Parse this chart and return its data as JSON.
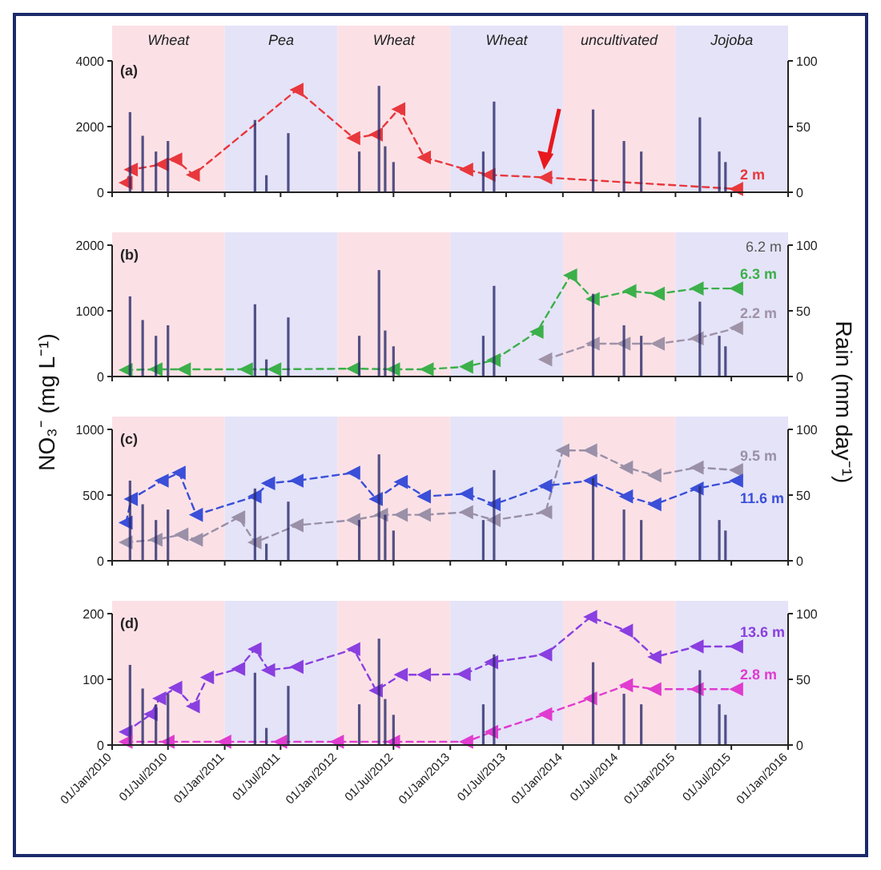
{
  "chart_data": [
    {
      "type": "line",
      "title": "(a)",
      "xlim": [
        "2010-01-01",
        "2016-01-01"
      ],
      "xticks": [
        {
          "value": "2010-01-01",
          "label": null
        },
        {
          "value": "2010-07-01",
          "label": null
        },
        {
          "value": "2011-01-01",
          "label": null
        },
        {
          "value": "2011-07-01",
          "label": null
        },
        {
          "value": "2012-01-01",
          "label": null
        },
        {
          "value": "2012-07-01",
          "label": null
        },
        {
          "value": "2013-01-01",
          "label": null
        },
        {
          "value": "2013-07-01",
          "label": null
        },
        {
          "value": "2014-01-01",
          "label": null
        },
        {
          "value": "2014-07-01",
          "label": null
        },
        {
          "value": "2015-01-01",
          "label": null
        },
        {
          "value": "2015-07-01",
          "label": null
        },
        {
          "value": "2016-01-01",
          "label": null
        }
      ],
      "ylim": [
        0,
        4000
      ],
      "yticks": [
        0,
        2000,
        4000
      ],
      "y2lim": [
        0,
        100
      ],
      "y2ticks": [
        0,
        50,
        100
      ],
      "tick_labels": "y",
      "marker": "triangle",
      "line_style": "dashed",
      "bands": [
        {
          "axis": "x",
          "from": "2010-01-01",
          "to": "2011-01-01",
          "label": "Wheat",
          "color": "#fbe1e6"
        },
        {
          "axis": "x",
          "from": "2011-01-01",
          "to": "2012-01-01",
          "label": "Pea",
          "color": "#e4e3f8"
        },
        {
          "axis": "x",
          "from": "2012-01-01",
          "to": "2013-01-01",
          "label": "Wheat",
          "color": "#fbe1e6"
        },
        {
          "axis": "x",
          "from": "2013-01-01",
          "to": "2014-01-01",
          "label": "Wheat",
          "color": "#e4e3f8"
        },
        {
          "axis": "x",
          "from": "2014-01-01",
          "to": "2015-01-01",
          "label": "uncultivated",
          "color": "#fbe1e6"
        },
        {
          "axis": "x",
          "from": "2015-01-01",
          "to": "2016-01-01",
          "label": "Jojoba",
          "color": "#e4e3f8"
        }
      ],
      "series": [
        {
          "type": "bar",
          "axis": "y2",
          "color": "#2a2a6a",
          "x": [
            "2010-02-28",
            "2010-04-10",
            "2010-05-23",
            "2010-07-01",
            "2011-04-09",
            "2011-05-16",
            "2011-07-26",
            "2012-03-12",
            "2012-05-15",
            "2012-06-04",
            "2012-07-01",
            "2013-04-18",
            "2013-05-23",
            "2014-04-09",
            "2014-07-18",
            "2014-09-12",
            "2015-03-21",
            "2015-05-23",
            "2015-06-12"
          ],
          "values": [
            61,
            43,
            31,
            39,
            55,
            13,
            45,
            31,
            81,
            35,
            23,
            31,
            69,
            63,
            39,
            31,
            57,
            31,
            23
          ]
        },
        {
          "name": "2 m",
          "color": "#e8383d",
          "x": [
            "2010-02-15",
            "2010-03-04",
            "2010-06-12",
            "2010-07-26",
            "2010-09-21",
            "2011-08-23",
            "2012-02-23",
            "2012-05-06",
            "2012-07-18",
            "2012-10-09",
            "2013-02-23",
            "2013-05-06",
            "2013-11-06",
            "2015-07-18"
          ],
          "values": [
            290,
            690,
            850,
            1000,
            530,
            3120,
            1650,
            1760,
            2530,
            1060,
            690,
            530,
            450,
            100
          ]
        }
      ]
    },
    {
      "type": "line",
      "title": "(b)",
      "ylabel": "NO₃⁻ (mg L⁻¹)",
      "y2label": "Rain (mm day⁻¹)",
      "annotations": [
        "6.2 m"
      ],
      "xlim": [
        "2010-01-01",
        "2016-01-01"
      ],
      "xticks": [
        {
          "value": "2010-01-01",
          "label": null
        },
        {
          "value": "2010-07-01",
          "label": null
        },
        {
          "value": "2011-01-01",
          "label": null
        },
        {
          "value": "2011-07-01",
          "label": null
        },
        {
          "value": "2012-01-01",
          "label": null
        },
        {
          "value": "2012-07-01",
          "label": null
        },
        {
          "value": "2013-01-01",
          "label": null
        },
        {
          "value": "2013-07-01",
          "label": null
        },
        {
          "value": "2014-01-01",
          "label": null
        },
        {
          "value": "2014-07-01",
          "label": null
        },
        {
          "value": "2015-01-01",
          "label": null
        },
        {
          "value": "2015-07-01",
          "label": null
        },
        {
          "value": "2016-01-01",
          "label": null
        }
      ],
      "ylim": [
        0,
        2000
      ],
      "yticks": [
        0,
        1000,
        2000
      ],
      "y2lim": [
        0,
        100
      ],
      "y2ticks": [
        0,
        50,
        100
      ],
      "tick_labels": "y",
      "marker": "triangle",
      "line_style": "dashed",
      "bands": [
        {
          "axis": "x",
          "from": "2010-01-01",
          "to": "2011-01-01",
          "color": "#fbe1e6"
        },
        {
          "axis": "x",
          "from": "2011-01-01",
          "to": "2012-01-01",
          "color": "#e4e3f8"
        },
        {
          "axis": "x",
          "from": "2012-01-01",
          "to": "2013-01-01",
          "color": "#fbe1e6"
        },
        {
          "axis": "x",
          "from": "2013-01-01",
          "to": "2014-01-01",
          "color": "#e4e3f8"
        },
        {
          "axis": "x",
          "from": "2014-01-01",
          "to": "2015-01-01",
          "color": "#fbe1e6"
        },
        {
          "axis": "x",
          "from": "2015-01-01",
          "to": "2016-01-01",
          "color": "#e4e3f8"
        }
      ],
      "series": [
        {
          "type": "bar",
          "axis": "y2",
          "color": "#2a2a6a",
          "x": [
            "2010-02-28",
            "2010-04-10",
            "2010-05-23",
            "2010-07-01",
            "2011-04-09",
            "2011-05-16",
            "2011-07-26",
            "2012-03-12",
            "2012-05-15",
            "2012-06-04",
            "2012-07-01",
            "2013-04-18",
            "2013-05-23",
            "2014-04-09",
            "2014-07-18",
            "2014-09-12",
            "2015-03-21",
            "2015-05-23",
            "2015-06-12"
          ],
          "values": [
            61,
            43,
            31,
            39,
            55,
            13,
            45,
            31,
            81,
            35,
            23,
            31,
            69,
            63,
            39,
            31,
            57,
            31,
            23
          ]
        },
        {
          "name": "6.3 m",
          "color": "#3cb04a",
          "x": [
            "2010-02-15",
            "2010-05-23",
            "2010-08-23",
            "2011-03-12",
            "2011-06-12",
            "2012-02-23",
            "2012-07-01",
            "2012-10-18",
            "2013-02-23",
            "2013-05-23",
            "2013-10-09",
            "2014-01-26",
            "2014-04-09",
            "2014-08-06",
            "2014-11-06",
            "2015-03-12",
            "2015-07-18"
          ],
          "values": [
            100,
            110,
            110,
            110,
            110,
            120,
            110,
            110,
            150,
            250,
            680,
            1540,
            1180,
            1300,
            1260,
            1340,
            1340
          ]
        },
        {
          "name": "2.2 m",
          "color": "#a093a8",
          "x": [
            "2013-11-06",
            "2014-04-09",
            "2014-07-18",
            "2014-11-06",
            "2015-03-12",
            "2015-07-18"
          ],
          "values": [
            260,
            500,
            500,
            500,
            580,
            740
          ]
        }
      ]
    },
    {
      "type": "line",
      "title": "(c)",
      "xlim": [
        "2010-01-01",
        "2016-01-01"
      ],
      "xticks": [
        {
          "value": "2010-01-01",
          "label": null
        },
        {
          "value": "2010-07-01",
          "label": null
        },
        {
          "value": "2011-01-01",
          "label": null
        },
        {
          "value": "2011-07-01",
          "label": null
        },
        {
          "value": "2012-01-01",
          "label": null
        },
        {
          "value": "2012-07-01",
          "label": null
        },
        {
          "value": "2013-01-01",
          "label": null
        },
        {
          "value": "2013-07-01",
          "label": null
        },
        {
          "value": "2014-01-01",
          "label": null
        },
        {
          "value": "2014-07-01",
          "label": null
        },
        {
          "value": "2015-01-01",
          "label": null
        },
        {
          "value": "2015-07-01",
          "label": null
        },
        {
          "value": "2016-01-01",
          "label": null
        }
      ],
      "ylim": [
        0,
        1000
      ],
      "yticks": [
        0,
        500,
        1000
      ],
      "y2lim": [
        0,
        100
      ],
      "y2ticks": [
        0,
        50,
        100
      ],
      "tick_labels": "y",
      "marker": "triangle",
      "line_style": "dashed",
      "bands": [
        {
          "axis": "x",
          "from": "2010-01-01",
          "to": "2011-01-01",
          "color": "#fbe1e6"
        },
        {
          "axis": "x",
          "from": "2011-01-01",
          "to": "2012-01-01",
          "color": "#e4e3f8"
        },
        {
          "axis": "x",
          "from": "2012-01-01",
          "to": "2013-01-01",
          "color": "#fbe1e6"
        },
        {
          "axis": "x",
          "from": "2013-01-01",
          "to": "2014-01-01",
          "color": "#e4e3f8"
        },
        {
          "axis": "x",
          "from": "2014-01-01",
          "to": "2015-01-01",
          "color": "#fbe1e6"
        },
        {
          "axis": "x",
          "from": "2015-01-01",
          "to": "2016-01-01",
          "color": "#e4e3f8"
        }
      ],
      "series": [
        {
          "type": "bar",
          "axis": "y2",
          "color": "#2a2a6a",
          "x": [
            "2010-02-28",
            "2010-04-10",
            "2010-05-23",
            "2010-07-01",
            "2011-04-09",
            "2011-05-16",
            "2011-07-26",
            "2012-03-12",
            "2012-05-15",
            "2012-06-04",
            "2012-07-01",
            "2013-04-18",
            "2013-05-23",
            "2014-04-09",
            "2014-07-18",
            "2014-09-12",
            "2015-03-21",
            "2015-05-23",
            "2015-06-12"
          ],
          "values": [
            61,
            43,
            31,
            39,
            55,
            13,
            45,
            31,
            81,
            35,
            23,
            31,
            69,
            63,
            39,
            31,
            57,
            31,
            23
          ]
        },
        {
          "name": "9.5 m",
          "color": "#9a90a8",
          "x": [
            "2010-02-15",
            "2010-05-23",
            "2010-08-15",
            "2010-10-01",
            "2011-02-15",
            "2011-04-09",
            "2011-08-23",
            "2012-02-23",
            "2012-05-23",
            "2012-07-26",
            "2012-10-09",
            "2013-02-23",
            "2013-05-23",
            "2013-11-06",
            "2014-01-01",
            "2014-04-01",
            "2014-07-26",
            "2014-10-26",
            "2015-03-12",
            "2015-07-18"
          ],
          "values": [
            140,
            160,
            200,
            160,
            330,
            140,
            270,
            310,
            350,
            350,
            350,
            370,
            310,
            370,
            840,
            840,
            710,
            650,
            710,
            690
          ]
        },
        {
          "name": "11.6 m",
          "color": "#3b4fd8",
          "x": [
            "2010-02-15",
            "2010-03-04",
            "2010-06-12",
            "2010-08-06",
            "2010-10-01",
            "2011-04-09",
            "2011-05-23",
            "2011-08-23",
            "2012-02-23",
            "2012-05-06",
            "2012-07-26",
            "2012-10-09",
            "2013-02-23",
            "2013-05-23",
            "2013-11-06",
            "2014-04-01",
            "2014-07-26",
            "2014-10-26",
            "2015-03-12",
            "2015-07-18"
          ],
          "values": [
            290,
            470,
            610,
            670,
            350,
            490,
            590,
            610,
            670,
            470,
            600,
            490,
            510,
            430,
            570,
            610,
            490,
            430,
            550,
            610
          ]
        }
      ]
    },
    {
      "type": "line",
      "title": "(d)",
      "xlim": [
        "2010-01-01",
        "2016-01-01"
      ],
      "xticks": [
        {
          "value": "2010-01-01",
          "label": "01/Jan/2010"
        },
        {
          "value": "2010-07-01",
          "label": "01/Jul/2010"
        },
        {
          "value": "2011-01-01",
          "label": "01/Jan/2011"
        },
        {
          "value": "2011-07-01",
          "label": "01/Jul/2011"
        },
        {
          "value": "2012-01-01",
          "label": "01/Jan/2012"
        },
        {
          "value": "2012-07-01",
          "label": "01/Jul/2012"
        },
        {
          "value": "2013-01-01",
          "label": "01/Jan/2013"
        },
        {
          "value": "2013-07-01",
          "label": "01/Jul/2013"
        },
        {
          "value": "2014-01-01",
          "label": "01/Jan/2014"
        },
        {
          "value": "2014-07-01",
          "label": "01/Jul/2014"
        },
        {
          "value": "2015-01-01",
          "label": "01/Jan/2015"
        },
        {
          "value": "2015-07-01",
          "label": "01/Jul/2015"
        },
        {
          "value": "2016-01-01",
          "label": "01/Jan/2016"
        }
      ],
      "ylim": [
        0,
        200
      ],
      "yticks": [
        0,
        100,
        200
      ],
      "y2lim": [
        0,
        100
      ],
      "y2ticks": [
        0,
        50,
        100
      ],
      "marker": "triangle",
      "line_style": "dashed",
      "bands": [
        {
          "axis": "x",
          "from": "2010-01-01",
          "to": "2011-01-01",
          "color": "#fbe1e6"
        },
        {
          "axis": "x",
          "from": "2011-01-01",
          "to": "2012-01-01",
          "color": "#e4e3f8"
        },
        {
          "axis": "x",
          "from": "2012-01-01",
          "to": "2013-01-01",
          "color": "#fbe1e6"
        },
        {
          "axis": "x",
          "from": "2013-01-01",
          "to": "2014-01-01",
          "color": "#e4e3f8"
        },
        {
          "axis": "x",
          "from": "2014-01-01",
          "to": "2015-01-01",
          "color": "#fbe1e6"
        },
        {
          "axis": "x",
          "from": "2015-01-01",
          "to": "2016-01-01",
          "color": "#e4e3f8"
        }
      ],
      "series": [
        {
          "type": "bar",
          "axis": "y2",
          "color": "#2a2a6a",
          "x": [
            "2010-02-28",
            "2010-04-10",
            "2010-05-23",
            "2010-07-01",
            "2011-04-09",
            "2011-05-16",
            "2011-07-26",
            "2012-03-12",
            "2012-05-15",
            "2012-06-04",
            "2012-07-01",
            "2013-04-18",
            "2013-05-23",
            "2014-04-09",
            "2014-07-18",
            "2014-09-12",
            "2015-03-21",
            "2015-05-23",
            "2015-06-12"
          ],
          "values": [
            61,
            43,
            31,
            39,
            55,
            13,
            45,
            31,
            81,
            35,
            23,
            31,
            69,
            63,
            39,
            31,
            57,
            31,
            23
          ]
        },
        {
          "name": "13.6 m",
          "color": "#8a3fe0",
          "x": [
            "2010-02-15",
            "2010-05-07",
            "2010-06-04",
            "2010-07-26",
            "2010-09-21",
            "2010-11-06",
            "2011-02-15",
            "2011-04-09",
            "2011-05-23",
            "2011-08-23",
            "2012-02-23",
            "2012-05-06",
            "2012-07-26",
            "2012-10-09",
            "2013-02-15",
            "2013-05-15",
            "2013-11-06",
            "2014-04-01",
            "2014-07-26",
            "2014-10-26",
            "2015-03-12",
            "2015-07-18"
          ],
          "values": [
            20,
            47,
            71,
            87,
            59,
            103,
            116,
            146,
            114,
            119,
            146,
            83,
            107,
            107,
            108,
            126,
            138,
            195,
            174,
            134,
            150,
            150
          ]
        },
        {
          "name": "2.8 m",
          "color": "#e03ccf",
          "x": [
            "2010-02-15",
            "2010-07-01",
            "2011-01-01",
            "2011-07-01",
            "2012-01-01",
            "2012-07-01",
            "2013-02-23",
            "2013-05-15",
            "2013-11-06",
            "2014-04-01",
            "2014-07-26",
            "2014-10-26",
            "2015-03-12",
            "2015-07-18"
          ],
          "values": [
            5,
            5,
            5,
            5,
            5,
            5,
            5,
            20,
            47,
            71,
            91,
            85,
            85,
            85
          ]
        }
      ]
    }
  ]
}
